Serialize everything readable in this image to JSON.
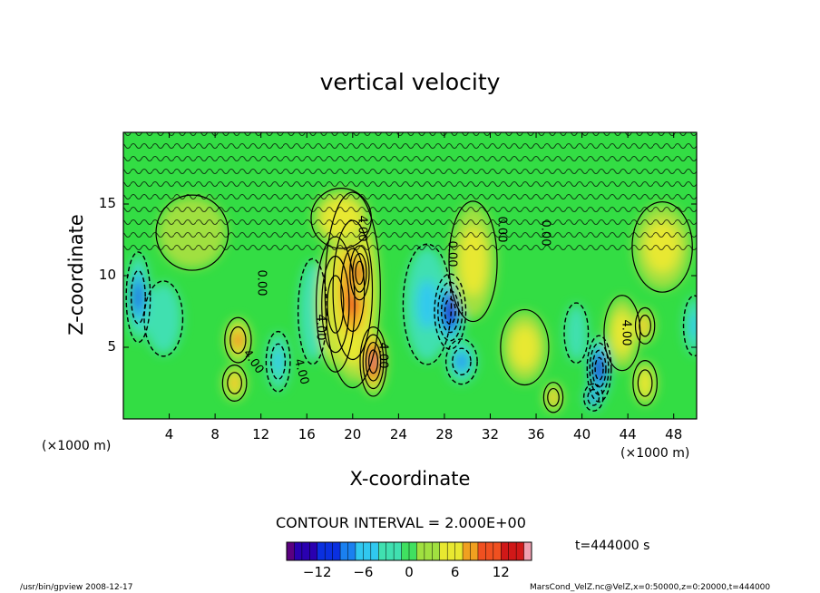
{
  "chart_data": {
    "type": "heatmap",
    "title": "vertical velocity",
    "xlabel": "X-coordinate",
    "ylabel": "Z-coordinate",
    "x_unit": "(×1000 m)",
    "x_unit_right": "(×1000 m)",
    "xlim": [
      0,
      50
    ],
    "ylim": [
      0,
      20
    ],
    "x_ticks": [
      4,
      8,
      12,
      16,
      20,
      24,
      28,
      32,
      36,
      40,
      44,
      48
    ],
    "y_ticks": [
      5,
      10,
      15
    ],
    "contour_interval": "CONTOUR INTERVAL = 2.000E+00",
    "contour_labels": [
      "4.00",
      "4.00",
      "4.00",
      "4.00",
      "0.00",
      "0.00",
      "0.00",
      "0.00",
      "4.00",
      "4.00"
    ],
    "colorbar": {
      "min": -16,
      "max": 16,
      "ticks": [
        "−12",
        "−6",
        "0",
        "6",
        "12"
      ],
      "tick_values": [
        -12,
        -6,
        0,
        6,
        12
      ]
    },
    "features": [
      {
        "x": 1.3,
        "z": 8.5,
        "value": -9,
        "rx": 1.0,
        "rz": 3.0
      },
      {
        "x": 3.5,
        "z": 7.0,
        "value": -4,
        "rx": 1.6,
        "rz": 2.5
      },
      {
        "x": 10.0,
        "z": 5.5,
        "value": 9,
        "rx": 1.1,
        "rz": 1.5
      },
      {
        "x": 9.7,
        "z": 2.5,
        "value": 8,
        "rx": 1.0,
        "rz": 1.2
      },
      {
        "x": 13.5,
        "z": 4.0,
        "value": -6,
        "rx": 1.0,
        "rz": 2.0
      },
      {
        "x": 16.5,
        "z": 7.5,
        "value": -3,
        "rx": 1.2,
        "rz": 3.5
      },
      {
        "x": 18.5,
        "z": 8.0,
        "value": 12,
        "rx": 1.6,
        "rz": 4.5
      },
      {
        "x": 20.0,
        "z": 9.0,
        "value": 10,
        "rx": 2.3,
        "rz": 6.5
      },
      {
        "x": 21.8,
        "z": 4.0,
        "value": 16,
        "rx": 1.1,
        "rz": 2.3
      },
      {
        "x": 20.6,
        "z": 10.2,
        "value": 13,
        "rx": 0.8,
        "rz": 1.8
      },
      {
        "x": 19.0,
        "z": 14.0,
        "value": 5,
        "rx": 2.5,
        "rz": 2.0
      },
      {
        "x": 26.5,
        "z": 8.0,
        "value": -5,
        "rx": 2.0,
        "rz": 4.0
      },
      {
        "x": 28.5,
        "z": 7.5,
        "value": -14,
        "rx": 1.3,
        "rz": 2.5
      },
      {
        "x": 29.5,
        "z": 4.0,
        "value": -8,
        "rx": 1.3,
        "rz": 1.5
      },
      {
        "x": 30.5,
        "z": 11.0,
        "value": 3,
        "rx": 2.0,
        "rz": 4.0
      },
      {
        "x": 35.0,
        "z": 5.0,
        "value": 4,
        "rx": 2.0,
        "rz": 2.5
      },
      {
        "x": 37.5,
        "z": 1.5,
        "value": 7,
        "rx": 0.8,
        "rz": 1.0
      },
      {
        "x": 39.5,
        "z": 6.0,
        "value": -4,
        "rx": 1.0,
        "rz": 2.0
      },
      {
        "x": 41.5,
        "z": 3.5,
        "value": -14,
        "rx": 1.0,
        "rz": 2.2
      },
      {
        "x": 41.0,
        "z": 1.5,
        "value": -9,
        "rx": 0.8,
        "rz": 0.9
      },
      {
        "x": 43.5,
        "z": 6.0,
        "value": 3,
        "rx": 1.5,
        "rz": 2.5
      },
      {
        "x": 45.5,
        "z": 6.5,
        "value": 8,
        "rx": 0.8,
        "rz": 1.2
      },
      {
        "x": 45.5,
        "z": 2.5,
        "value": 6,
        "rx": 1.0,
        "rz": 1.5
      },
      {
        "x": 49.8,
        "z": 6.5,
        "value": -5,
        "rx": 0.9,
        "rz": 2.0
      },
      {
        "x": 47.0,
        "z": 12.0,
        "value": 3,
        "rx": 2.5,
        "rz": 3.0
      },
      {
        "x": 6.0,
        "z": 13.0,
        "value": 2,
        "rx": 3.0,
        "rz": 2.5
      }
    ]
  },
  "timestamp": "t=444000  s",
  "footer": {
    "left": "/usr/bin/gpview   2008-12-17",
    "right": "MarsCond_VelZ.nc@VelZ,x=0:50000,z=0:20000,t=444000"
  },
  "colors": {
    "background_field": "#33dd44",
    "palette": [
      "#5a0080",
      "#2a00b0",
      "#0a30e0",
      "#1a80f0",
      "#30c8f0",
      "#40e0b0",
      "#40e060",
      "#a0e040",
      "#e8e830",
      "#f0a020",
      "#f05020",
      "#d01818",
      "#f0a0b0"
    ]
  }
}
